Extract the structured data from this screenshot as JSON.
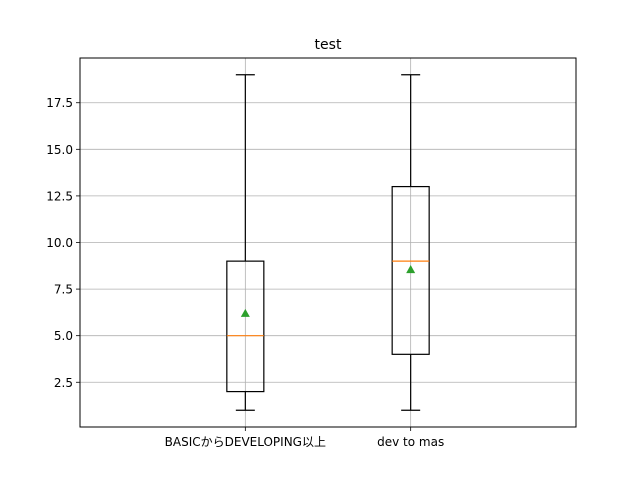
{
  "chart_data": {
    "type": "box",
    "title": "test",
    "xlabel": "",
    "ylabel": "",
    "categories": [
      "BASICからDEVELOPING以上",
      "dev to mas"
    ],
    "boxes": [
      {
        "whisker_low": 1,
        "q1": 2,
        "median": 5,
        "q3": 9,
        "whisker_high": 19,
        "mean": 6.2
      },
      {
        "whisker_low": 1,
        "q1": 4,
        "median": 9,
        "q3": 13,
        "whisker_high": 19,
        "mean": 8.55
      }
    ],
    "ylim": [
      0.1,
      19.9
    ],
    "yticks": [
      2.5,
      5.0,
      7.5,
      10.0,
      12.5,
      15.0,
      17.5
    ],
    "ytick_labels": [
      "2.5",
      "5.0",
      "7.5",
      "10.0",
      "12.5",
      "15.0",
      "17.5"
    ],
    "grid": true,
    "colors": {
      "box": "#000000",
      "median": "#ff7f0e",
      "mean": "#2ca02c",
      "grid": "#b0b0b0"
    }
  }
}
